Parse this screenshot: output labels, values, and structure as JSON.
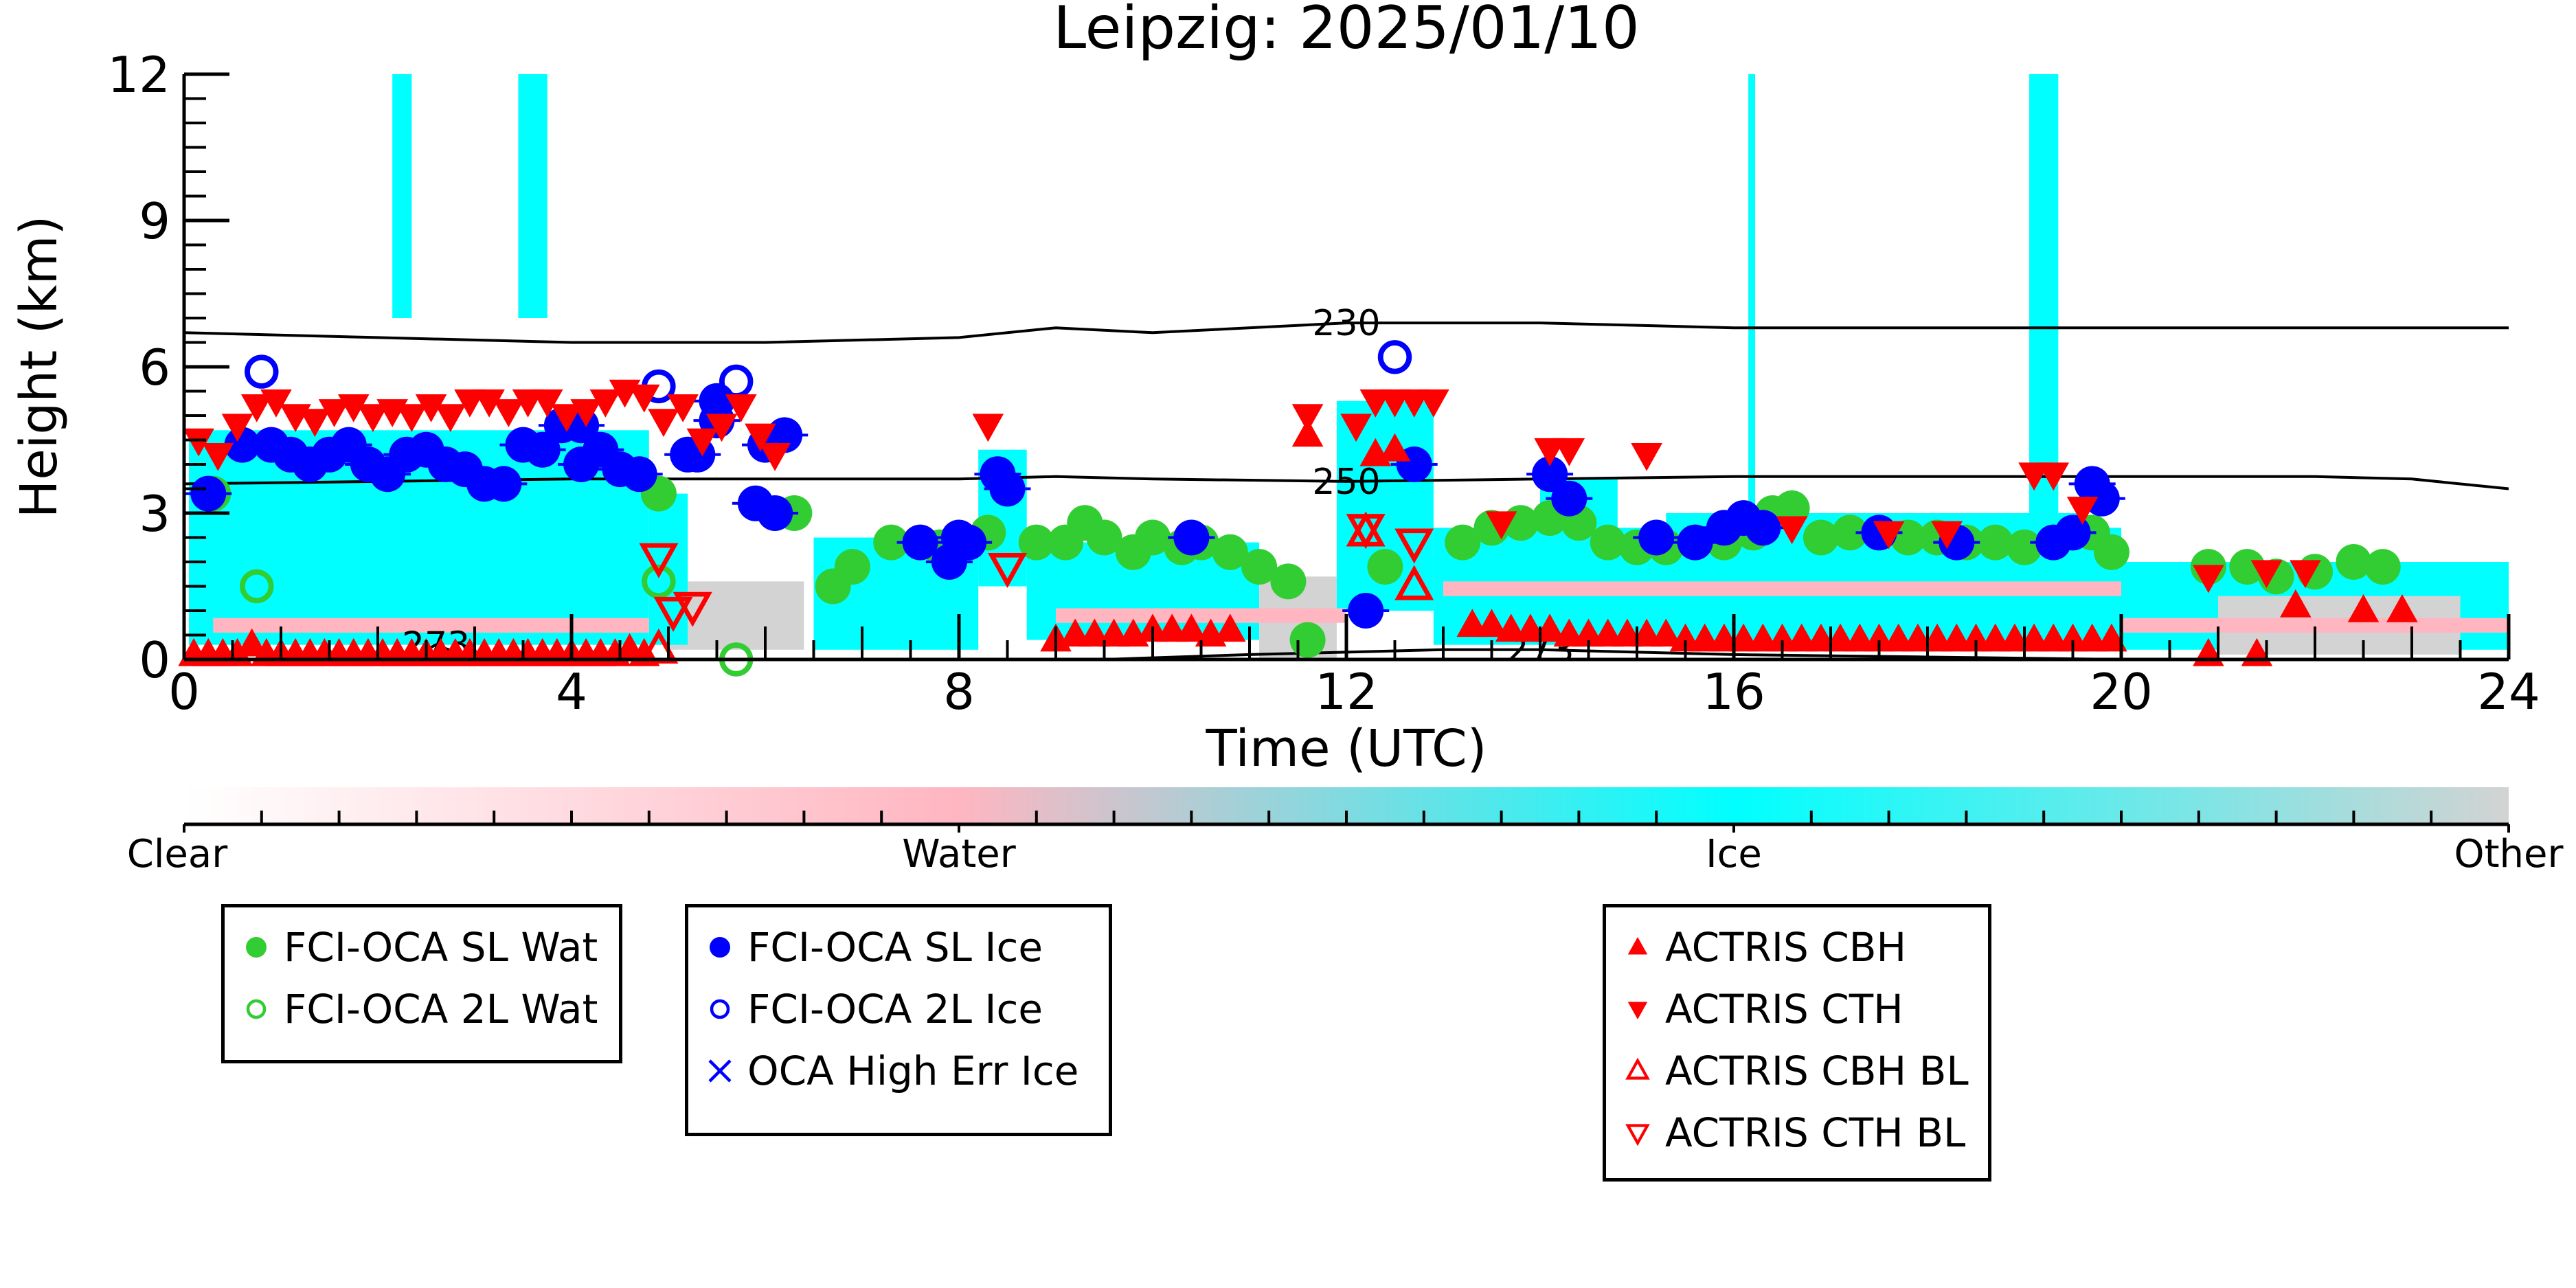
{
  "chart_data": {
    "type": "scatter",
    "title": "Leipzig: 2025/01/10",
    "xlabel": "Time (UTC)",
    "ylabel": "Height (km)",
    "xlim": [
      0,
      24
    ],
    "ylim": [
      0,
      12
    ],
    "xticks": [
      "0",
      "4",
      "8",
      "12",
      "16",
      "20",
      "24"
    ],
    "yticks": [
      "0",
      "3",
      "6",
      "9",
      "12"
    ],
    "colorbar": {
      "labels": [
        "Clear",
        "Water",
        "Ice",
        "Other"
      ],
      "colors": [
        "#ffffff",
        "#ffb6c1",
        "#00ffff",
        "#d3d3d3"
      ]
    },
    "contours": [
      {
        "label": "230",
        "x": [
          0,
          2,
          4,
          6,
          8,
          9,
          10,
          12,
          14,
          16,
          18,
          20,
          22,
          24
        ],
        "y": [
          6.7,
          6.6,
          6.5,
          6.5,
          6.6,
          6.8,
          6.7,
          6.9,
          6.9,
          6.8,
          6.8,
          6.8,
          6.8,
          6.8
        ]
      },
      {
        "label": "250",
        "x": [
          0,
          2,
          4,
          6,
          8,
          9,
          10,
          12,
          14,
          16,
          18,
          20,
          22,
          23,
          24
        ],
        "y": [
          3.6,
          3.65,
          3.7,
          3.7,
          3.7,
          3.75,
          3.7,
          3.65,
          3.7,
          3.75,
          3.75,
          3.75,
          3.75,
          3.7,
          3.5
        ]
      },
      {
        "label": "273",
        "x": [
          2.3,
          2.6,
          3.0
        ],
        "y": [
          0.0,
          0.3,
          0.0
        ]
      },
      {
        "label": "273",
        "x": [
          9.5,
          11,
          12,
          13,
          14,
          15,
          16,
          18,
          20
        ],
        "y": [
          0.0,
          0.1,
          0.15,
          0.2,
          0.2,
          0.15,
          0.1,
          0.05,
          0.0
        ]
      }
    ],
    "series": [
      {
        "name": "FCI-OCA SL Wat",
        "marker": "filled-circle",
        "color": "#32cd32",
        "x": [
          0.3,
          4.9,
          6.3,
          6.7,
          6.9,
          7.3,
          7.8,
          8.3,
          8.8,
          9.1,
          9.3,
          9.5,
          9.8,
          10.0,
          10.3,
          10.5,
          10.8,
          11.1,
          11.4,
          11.6,
          12.4,
          13.2,
          13.5,
          13.8,
          14.1,
          14.4,
          14.7,
          15.0,
          15.3,
          15.6,
          15.9,
          16.2,
          16.4,
          16.6,
          16.9,
          17.2,
          17.5,
          17.8,
          18.1,
          18.4,
          18.7,
          19.0,
          19.7,
          19.9,
          20.9,
          21.3,
          21.6,
          22.0,
          22.4,
          22.7
        ],
        "y": [
          3.4,
          3.4,
          3.0,
          1.5,
          1.9,
          2.4,
          2.3,
          2.6,
          2.4,
          2.4,
          2.8,
          2.5,
          2.2,
          2.5,
          2.3,
          2.4,
          2.2,
          1.9,
          1.6,
          0.4,
          1.9,
          2.4,
          2.7,
          2.8,
          2.9,
          2.8,
          2.4,
          2.3,
          2.3,
          2.4,
          2.4,
          2.6,
          3.0,
          3.1,
          2.5,
          2.6,
          2.6,
          2.5,
          2.5,
          2.4,
          2.4,
          2.3,
          2.6,
          2.2,
          1.9,
          1.9,
          1.7,
          1.8,
          2.0,
          1.9
        ]
      },
      {
        "name": "FCI-OCA 2L Wat",
        "marker": "open-circle",
        "color": "#32cd32",
        "x": [
          0.75,
          4.9,
          5.7
        ],
        "y": [
          1.5,
          1.6,
          0.0
        ]
      },
      {
        "name": "FCI-OCA SL Ice",
        "marker": "filled-circle",
        "color": "#0000ff",
        "x": [
          0.25,
          0.6,
          0.9,
          1.1,
          1.3,
          1.5,
          1.7,
          1.9,
          2.1,
          2.3,
          2.5,
          2.7,
          2.9,
          3.1,
          3.3,
          3.5,
          3.7,
          3.9,
          4.1,
          4.3,
          4.5,
          4.7,
          5.2,
          5.5,
          5.9,
          6.1,
          6.2,
          7.6,
          7.9,
          8.0,
          8.1,
          8.4,
          8.5,
          10.4,
          12.2,
          12.7,
          14.1,
          14.3,
          15.2,
          15.6,
          15.9,
          16.1,
          16.3,
          17.5,
          18.3,
          19.3,
          19.5,
          19.7,
          19.8
        ],
        "y": [
          3.4,
          4.4,
          4.4,
          4.2,
          4.0,
          4.2,
          4.4,
          4.0,
          3.8,
          4.2,
          4.3,
          4.0,
          3.9,
          3.6,
          3.6,
          4.4,
          4.3,
          4.8,
          4.0,
          4.3,
          3.9,
          3.8,
          4.2,
          4.9,
          3.2,
          3.0,
          4.6,
          2.4,
          2.0,
          2.5,
          2.4,
          3.8,
          3.5,
          2.5,
          1.0,
          4.0,
          3.8,
          3.3,
          2.5,
          2.4,
          2.7,
          2.9,
          2.7,
          2.6,
          2.4,
          2.4,
          2.6,
          3.6,
          3.3
        ],
        "extra_x": [
          4.1,
          5.3,
          5.5,
          6.0
        ],
        "extra_y": [
          4.8,
          4.2,
          5.3,
          4.4
        ]
      },
      {
        "name": "FCI-OCA 2L Ice",
        "marker": "open-circle",
        "color": "#0000ff",
        "x": [
          0.8,
          4.9,
          5.7,
          12.5
        ],
        "y": [
          5.9,
          5.6,
          5.7,
          6.2
        ]
      },
      {
        "name": "OCA High Err Ice",
        "marker": "x",
        "color": "#0000ff",
        "x": [],
        "y": []
      },
      {
        "name": "ACTRIS CBH",
        "marker": "triangle-up",
        "color": "#ff0000",
        "x": [
          0.1,
          0.25,
          0.4,
          0.55,
          0.7,
          0.85,
          1.0,
          1.15,
          1.3,
          1.45,
          1.6,
          1.75,
          1.9,
          2.05,
          2.2,
          2.35,
          2.5,
          2.65,
          2.8,
          2.95,
          3.1,
          3.25,
          3.4,
          3.55,
          3.7,
          3.85,
          4.0,
          4.15,
          4.3,
          4.45,
          4.6,
          4.75,
          9.0,
          9.2,
          9.4,
          9.6,
          9.8,
          10.0,
          10.2,
          10.4,
          10.6,
          10.8,
          11.6,
          12.3,
          12.5,
          13.3,
          13.5,
          13.7,
          13.9,
          14.1,
          14.3,
          14.5,
          14.7,
          14.9,
          15.1,
          15.3,
          15.5,
          15.7,
          15.9,
          16.1,
          16.3,
          16.5,
          16.7,
          16.9,
          17.1,
          17.3,
          17.5,
          17.7,
          17.9,
          18.1,
          18.3,
          18.5,
          18.7,
          18.9,
          19.1,
          19.3,
          19.5,
          19.7,
          19.9,
          20.9,
          21.4,
          21.8,
          22.5,
          22.9
        ],
        "y": [
          0.1,
          0.1,
          0.1,
          0.1,
          0.3,
          0.1,
          0.1,
          0.1,
          0.1,
          0.1,
          0.1,
          0.1,
          0.1,
          0.1,
          0.1,
          0.1,
          0.1,
          0.1,
          0.1,
          0.1,
          0.1,
          0.1,
          0.1,
          0.1,
          0.1,
          0.1,
          0.1,
          0.1,
          0.1,
          0.1,
          0.2,
          0.1,
          0.4,
          0.5,
          0.5,
          0.5,
          0.5,
          0.6,
          0.6,
          0.6,
          0.5,
          0.6,
          4.6,
          4.2,
          4.3,
          0.7,
          0.7,
          0.6,
          0.6,
          0.6,
          0.5,
          0.5,
          0.5,
          0.5,
          0.5,
          0.5,
          0.4,
          0.4,
          0.4,
          0.4,
          0.4,
          0.4,
          0.4,
          0.4,
          0.4,
          0.4,
          0.4,
          0.4,
          0.4,
          0.4,
          0.4,
          0.4,
          0.4,
          0.4,
          0.4,
          0.4,
          0.4,
          0.4,
          0.4,
          0.1,
          0.1,
          1.1,
          1.0,
          1.0
        ]
      },
      {
        "name": "ACTRIS CTH",
        "marker": "triangle-down",
        "color": "#ff0000",
        "x": [
          0.15,
          0.35,
          0.55,
          0.75,
          0.95,
          1.15,
          1.35,
          1.55,
          1.75,
          1.95,
          2.15,
          2.35,
          2.55,
          2.75,
          2.95,
          3.15,
          3.35,
          3.55,
          3.75,
          3.95,
          4.15,
          4.35,
          4.55,
          4.75,
          4.95,
          5.15,
          5.35,
          5.55,
          5.75,
          5.95,
          6.1,
          8.3,
          11.6,
          12.1,
          12.3,
          12.5,
          12.7,
          12.9,
          13.6,
          14.1,
          14.3,
          15.1,
          16.6,
          17.6,
          18.2,
          19.1,
          19.3,
          19.6,
          20.9,
          21.5,
          21.9
        ],
        "y": [
          4.5,
          4.2,
          4.8,
          5.2,
          5.3,
          5.0,
          4.9,
          5.1,
          5.2,
          5.0,
          5.1,
          5.0,
          5.2,
          5.0,
          5.3,
          5.3,
          5.1,
          5.3,
          5.3,
          5.0,
          5.1,
          5.3,
          5.5,
          5.4,
          4.9,
          5.2,
          4.5,
          4.8,
          5.2,
          4.6,
          4.2,
          4.8,
          5.0,
          4.8,
          5.3,
          5.3,
          5.3,
          5.3,
          2.8,
          4.3,
          4.3,
          4.2,
          2.7,
          2.6,
          2.6,
          3.8,
          3.8,
          3.1,
          1.7,
          1.8,
          1.8
        ]
      },
      {
        "name": "ACTRIS CBH BL",
        "marker": "open-triangle-up",
        "color": "#ff0000",
        "x": [
          4.9,
          12.2,
          12.7
        ],
        "y": [
          0.2,
          2.6,
          1.5
        ]
      },
      {
        "name": "ACTRIS CTH BL",
        "marker": "open-triangle-down",
        "color": "#ff0000",
        "x": [
          4.9,
          5.05,
          5.25,
          8.5,
          12.2,
          12.7
        ],
        "y": [
          2.1,
          1.0,
          1.1,
          1.9,
          2.7,
          2.4
        ]
      }
    ]
  },
  "legends": [
    {
      "items": [
        {
          "label": "FCI-OCA SL Wat",
          "marker": "filled-circle",
          "color": "#32cd32"
        },
        {
          "label": "FCI-OCA 2L Wat",
          "marker": "open-circle",
          "color": "#32cd32"
        }
      ]
    },
    {
      "items": [
        {
          "label": "FCI-OCA SL Ice",
          "marker": "filled-circle",
          "color": "#0000ff"
        },
        {
          "label": "FCI-OCA 2L Ice",
          "marker": "open-circle",
          "color": "#0000ff"
        },
        {
          "label": "OCA High Err Ice",
          "marker": "x",
          "color": "#0000ff"
        }
      ]
    },
    {
      "items": [
        {
          "label": "ACTRIS CBH",
          "marker": "triangle-up",
          "color": "#ff0000"
        },
        {
          "label": "ACTRIS CTH",
          "marker": "triangle-down",
          "color": "#ff0000"
        },
        {
          "label": "ACTRIS CBH BL",
          "marker": "open-triangle-up",
          "color": "#ff0000"
        },
        {
          "label": "ACTRIS CTH BL",
          "marker": "open-triangle-down",
          "color": "#ff0000"
        }
      ]
    }
  ]
}
